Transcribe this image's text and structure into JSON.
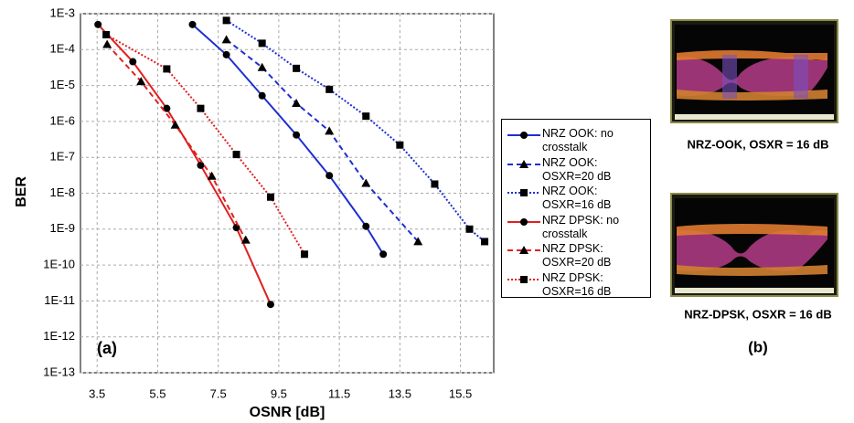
{
  "chart_data": {
    "type": "line",
    "xlabel": "OSNR [dB]",
    "ylabel": "BER",
    "panel_label": "(a)",
    "xlim": [
      2.95,
      16.6
    ],
    "xticks": [
      3.5,
      5.5,
      7.5,
      9.5,
      11.5,
      13.5,
      15.5
    ],
    "ylim": [
      1e-13,
      0.001
    ],
    "ylog": true,
    "grid": true,
    "yticks": [
      {
        "value": 0.001,
        "label": "1E-3"
      },
      {
        "value": 0.0001,
        "label": "1E-4"
      },
      {
        "value": 1e-05,
        "label": "1E-5"
      },
      {
        "value": 1e-06,
        "label": "1E-6"
      },
      {
        "value": 1e-07,
        "label": "1E-7"
      },
      {
        "value": 1e-08,
        "label": "1E-8"
      },
      {
        "value": 1e-09,
        "label": "1E-9"
      },
      {
        "value": 1e-10,
        "label": "1E-10"
      },
      {
        "value": 1e-11,
        "label": "1E-11"
      },
      {
        "value": 1e-12,
        "label": "1E-12"
      },
      {
        "value": 1e-13,
        "label": "1E-13"
      }
    ],
    "series": [
      {
        "name": "NRZ OOK: no crosstalk",
        "color": "#1f2fd0",
        "dash": "solid",
        "marker": "circle",
        "x": [
          6.65,
          7.77,
          8.95,
          10.08,
          11.17,
          12.38,
          12.95
        ],
        "values": [
          0.0005,
          7.2e-05,
          5.2e-06,
          4.2e-07,
          3.1e-08,
          1.2e-09,
          2e-10
        ]
      },
      {
        "name": "NRZ OOK: OSXR=20 dB",
        "color": "#1f2fd0",
        "dash": "dashed",
        "marker": "triangle",
        "x": [
          7.77,
          8.95,
          10.08,
          11.17,
          12.38,
          14.1
        ],
        "values": [
          0.00019,
          3.2e-05,
          3.2e-06,
          5.4e-07,
          1.9e-08,
          4.5e-10
        ]
      },
      {
        "name": "NRZ OOK: OSXR=16 dB",
        "color": "#1f2fd0",
        "dash": "dotted",
        "marker": "square",
        "x": [
          7.77,
          8.95,
          10.08,
          11.17,
          12.38,
          13.5,
          14.65,
          15.8,
          16.3
        ],
        "values": [
          0.00065,
          0.00015,
          3e-05,
          7.8e-06,
          1.4e-06,
          2.2e-07,
          1.8e-08,
          1e-09,
          4.5e-10
        ]
      },
      {
        "name": "NRZ DPSK: no crosstalk",
        "color": "#e02020",
        "dash": "solid",
        "marker": "circle",
        "x": [
          3.53,
          4.68,
          5.8,
          6.92,
          8.1,
          9.23
        ],
        "values": [
          0.0005,
          4.6e-05,
          2.3e-06,
          6e-08,
          1.1e-09,
          8e-12
        ]
      },
      {
        "name": "NRZ DPSK: OSXR=20 dB",
        "color": "#e02020",
        "dash": "dashed",
        "marker": "triangle",
        "x": [
          3.83,
          4.95,
          6.08,
          7.29,
          8.41
        ],
        "values": [
          0.00014,
          1.3e-05,
          8e-07,
          3e-08,
          5e-10
        ]
      },
      {
        "name": "NRZ DPSK: OSXR=16 dB",
        "color": "#e02020",
        "dash": "dotted",
        "marker": "square",
        "x": [
          3.8,
          5.8,
          6.92,
          8.1,
          9.23,
          10.35
        ],
        "values": [
          0.00026,
          2.9e-05,
          2.3e-06,
          1.2e-07,
          7.8e-09,
          2e-10
        ]
      }
    ]
  },
  "panel_b": {
    "captions": [
      "NRZ-OOK, OSXR = 16 dB",
      "NRZ-DPSK, OSXR = 16 dB"
    ],
    "label": "(b)"
  }
}
